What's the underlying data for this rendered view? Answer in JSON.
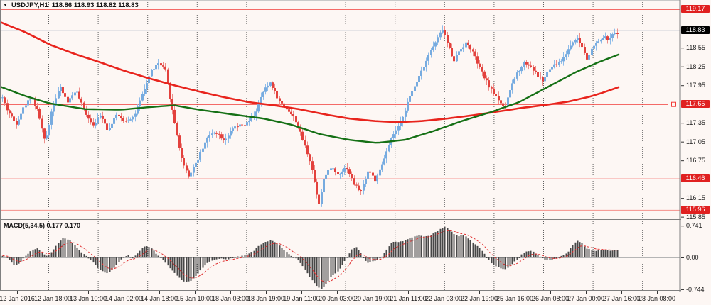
{
  "title": {
    "symbol": "USDJPY,H1",
    "ohlc": "118.86 118.93 118.82 118.83"
  },
  "macd": {
    "label": "MACD(5,34,5) 0.177 0.170"
  },
  "colors": {
    "background": "#fdf7f4",
    "bull_body": "#77abdf",
    "bull_wick": "#8fbce9",
    "bear_body": "#e3413d",
    "bear_wick": "#ed8e8a",
    "ma_red": "#e8241d",
    "ma_green": "#157015",
    "hline_red": "#f23b38",
    "hline_pale": "#f58f8a",
    "current_price_line": "#d0d0d8",
    "grid": "#606060",
    "panel_border": "#7f7f7f",
    "badge_red": "#e02020",
    "badge_black": "#000000",
    "macd_bar": "#474747",
    "macd_signal": "#e03030",
    "macd_zero": "#b5b5b5",
    "text": "#1c1c1c"
  },
  "price_axis": {
    "plain_ticks": [
      "118.55",
      "118.25",
      "117.95",
      "117.35",
      "117.05",
      "116.75",
      "116.15",
      "115.85"
    ],
    "plain_tick_values": [
      118.55,
      118.25,
      117.95,
      117.35,
      117.05,
      116.75,
      116.15,
      115.85
    ],
    "badges": [
      {
        "label": "119.17",
        "value": 119.17,
        "type": "red"
      },
      {
        "label": "118.83",
        "value": 118.83,
        "type": "black"
      },
      {
        "label": "117.65",
        "value": 117.65,
        "type": "red"
      },
      {
        "label": "116.46",
        "value": 116.46,
        "type": "red"
      },
      {
        "label": "115.96",
        "value": 115.96,
        "type": "red"
      }
    ]
  },
  "macd_axis": {
    "ticks": [
      {
        "label": "0.741",
        "value": 0.741
      },
      {
        "label": "0.00",
        "value": 0.0
      },
      {
        "label": "-0.744",
        "value": -0.744
      }
    ]
  },
  "time_axis": {
    "labels": [
      "12 Jan 2016",
      "12 Jan 18:00",
      "13 Jan 10:00",
      "14 Jan 02:00",
      "14 Jan 18:00",
      "15 Jan 10:00",
      "18 Jan 03:00",
      "18 Jan 19:00",
      "19 Jan 11:00",
      "20 Jan 03:00",
      "20 Jan 19:00",
      "21 Jan 11:00",
      "22 Jan 03:00",
      "22 Jan 19:00",
      "25 Jan 16:00",
      "26 Jan 08:00",
      "27 Jan 00:00",
      "27 Jan 16:00",
      "28 Jan 08:00"
    ]
  },
  "chart_data": {
    "type": "candlestick",
    "symbol": "USDJPY",
    "timeframe": "H1",
    "last_quote": {
      "open": "118.86",
      "high": "118.93",
      "low": "118.82",
      "close": "118.83"
    },
    "price_range_visible": [
      115.85,
      119.3
    ],
    "horizontal_lines": [
      {
        "price": 119.17,
        "style": "solid",
        "weight": "bold"
      },
      {
        "price": 117.65,
        "style": "solid-with-marker"
      },
      {
        "price": 116.46,
        "style": "solid"
      },
      {
        "price": 115.96,
        "style": "solid-pale"
      }
    ],
    "current_bid_line": 118.83,
    "close_path_anchors": [
      [
        2,
        117.78
      ],
      [
        10,
        117.55
      ],
      [
        22,
        117.33
      ],
      [
        34,
        117.62
      ],
      [
        44,
        117.77
      ],
      [
        54,
        117.5
      ],
      [
        63,
        117.02
      ],
      [
        73,
        117.6
      ],
      [
        84,
        117.92
      ],
      [
        95,
        117.68
      ],
      [
        106,
        117.88
      ],
      [
        118,
        117.55
      ],
      [
        130,
        117.32
      ],
      [
        142,
        117.48
      ],
      [
        152,
        117.22
      ],
      [
        162,
        117.48
      ],
      [
        175,
        117.38
      ],
      [
        188,
        117.45
      ],
      [
        200,
        117.8
      ],
      [
        212,
        118.18
      ],
      [
        222,
        118.3
      ],
      [
        232,
        118.2
      ],
      [
        242,
        117.55
      ],
      [
        255,
        116.78
      ],
      [
        265,
        116.5
      ],
      [
        278,
        116.78
      ],
      [
        290,
        117.1
      ],
      [
        302,
        117.22
      ],
      [
        315,
        117.08
      ],
      [
        330,
        117.28
      ],
      [
        345,
        117.32
      ],
      [
        358,
        117.48
      ],
      [
        370,
        117.85
      ],
      [
        380,
        118.0
      ],
      [
        392,
        117.7
      ],
      [
        405,
        117.55
      ],
      [
        415,
        117.4
      ],
      [
        425,
        117.1
      ],
      [
        437,
        116.7
      ],
      [
        448,
        116.05
      ],
      [
        455,
        116.45
      ],
      [
        465,
        116.65
      ],
      [
        475,
        116.52
      ],
      [
        487,
        116.65
      ],
      [
        497,
        116.38
      ],
      [
        507,
        116.25
      ],
      [
        518,
        116.6
      ],
      [
        528,
        116.42
      ],
      [
        540,
        116.78
      ],
      [
        552,
        117.15
      ],
      [
        562,
        117.32
      ],
      [
        572,
        117.65
      ],
      [
        583,
        117.95
      ],
      [
        593,
        118.2
      ],
      [
        603,
        118.45
      ],
      [
        613,
        118.65
      ],
      [
        622,
        118.85
      ],
      [
        630,
        118.58
      ],
      [
        638,
        118.35
      ],
      [
        646,
        118.52
      ],
      [
        655,
        118.62
      ],
      [
        663,
        118.52
      ],
      [
        672,
        118.28
      ],
      [
        682,
        118.05
      ],
      [
        692,
        117.85
      ],
      [
        702,
        117.7
      ],
      [
        710,
        117.58
      ],
      [
        718,
        117.92
      ],
      [
        727,
        118.15
      ],
      [
        737,
        118.32
      ],
      [
        746,
        118.25
      ],
      [
        755,
        118.12
      ],
      [
        763,
        118.02
      ],
      [
        772,
        118.2
      ],
      [
        781,
        118.28
      ],
      [
        790,
        118.35
      ],
      [
        800,
        118.55
      ],
      [
        810,
        118.72
      ],
      [
        818,
        118.58
      ],
      [
        825,
        118.38
      ],
      [
        833,
        118.55
      ],
      [
        841,
        118.65
      ],
      [
        849,
        118.72
      ],
      [
        857,
        118.68
      ],
      [
        863,
        118.78
      ],
      [
        870,
        118.8
      ]
    ],
    "ma_slow_red_anchors": [
      [
        0,
        118.96
      ],
      [
        35,
        118.8
      ],
      [
        70,
        118.6
      ],
      [
        105,
        118.45
      ],
      [
        140,
        118.32
      ],
      [
        175,
        118.18
      ],
      [
        210,
        118.06
      ],
      [
        245,
        117.95
      ],
      [
        280,
        117.85
      ],
      [
        315,
        117.76
      ],
      [
        350,
        117.68
      ],
      [
        385,
        117.63
      ],
      [
        420,
        117.57
      ],
      [
        455,
        117.49
      ],
      [
        490,
        117.42
      ],
      [
        525,
        117.38
      ],
      [
        560,
        117.36
      ],
      [
        595,
        117.38
      ],
      [
        630,
        117.42
      ],
      [
        665,
        117.47
      ],
      [
        700,
        117.53
      ],
      [
        735,
        117.59
      ],
      [
        770,
        117.64
      ],
      [
        800,
        117.69
      ],
      [
        830,
        117.77
      ],
      [
        850,
        117.84
      ],
      [
        870,
        117.92
      ]
    ],
    "ma_fast_green_anchors": [
      [
        0,
        117.93
      ],
      [
        35,
        117.78
      ],
      [
        70,
        117.66
      ],
      [
        120,
        117.57
      ],
      [
        170,
        117.56
      ],
      [
        210,
        117.6
      ],
      [
        245,
        117.63
      ],
      [
        280,
        117.56
      ],
      [
        330,
        117.48
      ],
      [
        370,
        117.42
      ],
      [
        410,
        117.32
      ],
      [
        450,
        117.17
      ],
      [
        490,
        117.08
      ],
      [
        530,
        117.03
      ],
      [
        570,
        117.08
      ],
      [
        610,
        117.22
      ],
      [
        650,
        117.38
      ],
      [
        690,
        117.52
      ],
      [
        730,
        117.68
      ],
      [
        770,
        117.92
      ],
      [
        810,
        118.16
      ],
      [
        840,
        118.31
      ],
      [
        870,
        118.44
      ]
    ],
    "macd_indicator": {
      "params": "5,34,5",
      "macd_value": 0.177,
      "signal_value": 0.17,
      "range": [
        -0.744,
        0.741
      ],
      "hist_anchors": [
        [
          2,
          0.05
        ],
        [
          8,
          0.02
        ],
        [
          14,
          -0.08
        ],
        [
          20,
          -0.19
        ],
        [
          28,
          -0.12
        ],
        [
          36,
          0.05
        ],
        [
          45,
          0.18
        ],
        [
          53,
          0.22
        ],
        [
          60,
          0.1
        ],
        [
          66,
          0.02
        ],
        [
          72,
          0.12
        ],
        [
          80,
          0.32
        ],
        [
          88,
          0.45
        ],
        [
          96,
          0.42
        ],
        [
          104,
          0.3
        ],
        [
          112,
          0.15
        ],
        [
          120,
          0.04
        ],
        [
          128,
          -0.06
        ],
        [
          136,
          -0.22
        ],
        [
          145,
          -0.34
        ],
        [
          152,
          -0.37
        ],
        [
          160,
          -0.25
        ],
        [
          168,
          -0.08
        ],
        [
          174,
          0.03
        ],
        [
          180,
          0.05
        ],
        [
          186,
          -0.02
        ],
        [
          192,
          0.08
        ],
        [
          198,
          0.2
        ],
        [
          205,
          0.27
        ],
        [
          212,
          0.22
        ],
        [
          220,
          0.08
        ],
        [
          228,
          -0.05
        ],
        [
          236,
          -0.2
        ],
        [
          244,
          -0.35
        ],
        [
          252,
          -0.48
        ],
        [
          260,
          -0.58
        ],
        [
          268,
          -0.55
        ],
        [
          276,
          -0.42
        ],
        [
          284,
          -0.25
        ],
        [
          292,
          -0.12
        ],
        [
          300,
          -0.05
        ],
        [
          308,
          -0.02
        ],
        [
          316,
          -0.05
        ],
        [
          324,
          -0.02
        ],
        [
          332,
          0.01
        ],
        [
          340,
          0.03
        ],
        [
          348,
          0.07
        ],
        [
          356,
          0.15
        ],
        [
          364,
          0.28
        ],
        [
          372,
          0.36
        ],
        [
          380,
          0.4
        ],
        [
          388,
          0.34
        ],
        [
          396,
          0.22
        ],
        [
          404,
          0.1
        ],
        [
          410,
          0.03
        ],
        [
          416,
          -0.03
        ],
        [
          422,
          -0.12
        ],
        [
          428,
          -0.26
        ],
        [
          434,
          -0.42
        ],
        [
          440,
          -0.56
        ],
        [
          446,
          -0.68
        ],
        [
          452,
          -0.72
        ],
        [
          458,
          -0.62
        ],
        [
          464,
          -0.48
        ],
        [
          470,
          -0.38
        ],
        [
          476,
          -0.3
        ],
        [
          482,
          -0.16
        ],
        [
          488,
          0.02
        ],
        [
          494,
          0.18
        ],
        [
          500,
          0.25
        ],
        [
          506,
          0.14
        ],
        [
          512,
          -0.06
        ],
        [
          518,
          -0.13
        ],
        [
          524,
          -0.09
        ],
        [
          530,
          -0.05
        ],
        [
          536,
          -0.01
        ],
        [
          542,
          0.15
        ],
        [
          548,
          0.3
        ],
        [
          554,
          0.38
        ],
        [
          560,
          0.36
        ],
        [
          566,
          0.38
        ],
        [
          572,
          0.42
        ],
        [
          578,
          0.46
        ],
        [
          584,
          0.5
        ],
        [
          590,
          0.52
        ],
        [
          596,
          0.48
        ],
        [
          602,
          0.5
        ],
        [
          608,
          0.55
        ],
        [
          614,
          0.6
        ],
        [
          620,
          0.68
        ],
        [
          626,
          0.72
        ],
        [
          632,
          0.64
        ],
        [
          638,
          0.55
        ],
        [
          644,
          0.5
        ],
        [
          650,
          0.52
        ],
        [
          656,
          0.47
        ],
        [
          662,
          0.4
        ],
        [
          668,
          0.3
        ],
        [
          674,
          0.22
        ],
        [
          680,
          0.1
        ],
        [
          686,
          -0.05
        ],
        [
          692,
          -0.15
        ],
        [
          698,
          -0.21
        ],
        [
          704,
          -0.26
        ],
        [
          710,
          -0.28
        ],
        [
          716,
          -0.22
        ],
        [
          722,
          -0.12
        ],
        [
          728,
          -0.03
        ],
        [
          734,
          0.08
        ],
        [
          740,
          0.14
        ],
        [
          746,
          0.15
        ],
        [
          752,
          0.11
        ],
        [
          758,
          0.04
        ],
        [
          764,
          -0.03
        ],
        [
          770,
          -0.08
        ],
        [
          776,
          -0.06
        ],
        [
          782,
          -0.02
        ],
        [
          788,
          0.02
        ],
        [
          794,
          0.06
        ],
        [
          800,
          0.16
        ],
        [
          806,
          0.3
        ],
        [
          812,
          0.4
        ],
        [
          818,
          0.34
        ],
        [
          824,
          0.22
        ],
        [
          830,
          0.18
        ],
        [
          836,
          0.15
        ],
        [
          842,
          0.17
        ],
        [
          848,
          0.18
        ],
        [
          854,
          0.16
        ],
        [
          860,
          0.17
        ],
        [
          866,
          0.17
        ]
      ]
    }
  }
}
